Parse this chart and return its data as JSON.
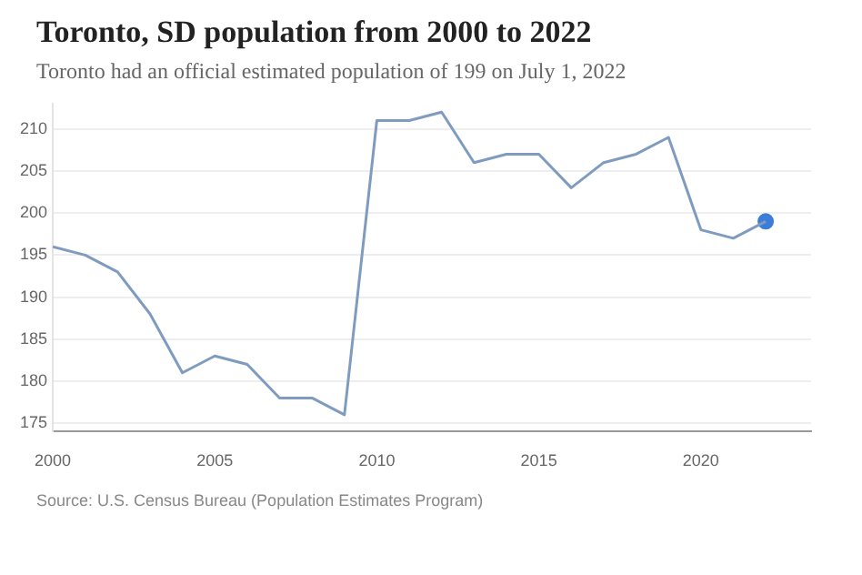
{
  "chart_data": {
    "type": "line",
    "title": "Toronto, SD population from 2000 to 2022",
    "subtitle": "Toronto had an official estimated population of 199 on July 1, 2022",
    "annotations": [
      "Source: U.S. Census Bureau (Population Estimates Program)"
    ],
    "x": [
      2000,
      2001,
      2002,
      2003,
      2004,
      2005,
      2006,
      2007,
      2008,
      2009,
      2010,
      2011,
      2012,
      2013,
      2014,
      2015,
      2016,
      2017,
      2018,
      2019,
      2020,
      2021,
      2022
    ],
    "series": [
      {
        "color": "#7f9cc0",
        "values": [
          196,
          195,
          193,
          188,
          181,
          183,
          182,
          178,
          178,
          176,
          211,
          211,
          212,
          206,
          207,
          207,
          203,
          206,
          207,
          209,
          198,
          197,
          199
        ]
      },
      {
        "type": "scatter",
        "color": "#3b7dd8",
        "x": [
          2022
        ],
        "values": [
          199
        ],
        "marker": "circle"
      }
    ],
    "xlim": [
      2000,
      2023.4
    ],
    "xticks": [
      2000,
      2005,
      2010,
      2015,
      2020
    ],
    "ylim": [
      174,
      213
    ],
    "yticks": [
      175,
      180,
      185,
      190,
      195,
      200,
      205,
      210
    ],
    "grid": "y",
    "legend": false,
    "marker": "none",
    "line_style": "solid"
  }
}
